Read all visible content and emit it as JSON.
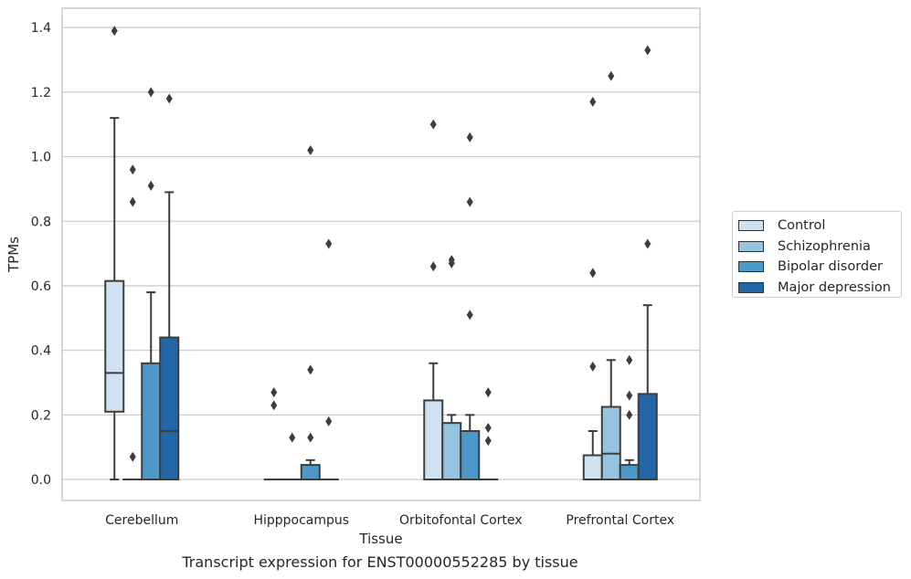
{
  "chart_data": {
    "type": "box",
    "xlabel": "Tissue",
    "ylabel": "TPMs",
    "ylim": [
      -0.065,
      1.46
    ],
    "yticks": [
      0.0,
      0.2,
      0.4,
      0.6,
      0.8,
      1.0,
      1.2,
      1.4
    ],
    "ytick_labels": [
      "0.0",
      "0.2",
      "0.4",
      "0.6",
      "0.8",
      "1.0",
      "1.2",
      "1.4"
    ],
    "grid": "horizontal",
    "legend_position": "right",
    "categories": [
      "Cerebellum",
      "Hipppocampus",
      "Orbitofontal Cortex",
      "Prefrontal Cortex"
    ],
    "series": [
      {
        "name": "Control",
        "color": "#d0e1f2",
        "boxes": [
          {
            "whislo": 0.0,
            "q1": 0.21,
            "median": 0.33,
            "q3": 0.615,
            "whishi": 1.12,
            "fliers": [
              1.39
            ]
          },
          {
            "whislo": 0.0,
            "q1": 0.0,
            "median": 0.0,
            "q3": 0.0,
            "whishi": 0.0,
            "fliers": [
              0.27,
              0.23
            ]
          },
          {
            "whislo": 0.0,
            "q1": 0.0,
            "median": 0.0,
            "q3": 0.245,
            "whishi": 0.36,
            "fliers": [
              1.1,
              0.66
            ]
          },
          {
            "whislo": 0.0,
            "q1": 0.0,
            "median": 0.0,
            "q3": 0.075,
            "whishi": 0.15,
            "fliers": [
              1.17,
              0.64,
              0.35
            ]
          }
        ]
      },
      {
        "name": "Schizophrenia",
        "color": "#94c4df",
        "boxes": [
          {
            "whislo": 0.0,
            "q1": 0.0,
            "median": 0.0,
            "q3": 0.0,
            "whishi": 0.0,
            "fliers": [
              0.96,
              0.86,
              0.07
            ]
          },
          {
            "whislo": 0.0,
            "q1": 0.0,
            "median": 0.0,
            "q3": 0.0,
            "whishi": 0.0,
            "fliers": [
              0.13
            ]
          },
          {
            "whislo": 0.0,
            "q1": 0.0,
            "median": 0.0,
            "q3": 0.175,
            "whishi": 0.2,
            "fliers": [
              0.68,
              0.67
            ]
          },
          {
            "whislo": 0.0,
            "q1": 0.0,
            "median": 0.08,
            "q3": 0.225,
            "whishi": 0.37,
            "fliers": [
              1.25
            ]
          }
        ]
      },
      {
        "name": "Bipolar disorder",
        "color": "#4b98c9",
        "boxes": [
          {
            "whislo": 0.0,
            "q1": 0.0,
            "median": 0.0,
            "q3": 0.36,
            "whishi": 0.58,
            "fliers": [
              1.2,
              0.91
            ]
          },
          {
            "whislo": 0.0,
            "q1": 0.0,
            "median": 0.0,
            "q3": 0.045,
            "whishi": 0.06,
            "fliers": [
              1.02,
              0.34,
              0.13
            ]
          },
          {
            "whislo": 0.0,
            "q1": 0.0,
            "median": 0.0,
            "q3": 0.15,
            "whishi": 0.2,
            "fliers": [
              1.06,
              0.86,
              0.51
            ]
          },
          {
            "whislo": 0.0,
            "q1": 0.0,
            "median": 0.0,
            "q3": 0.045,
            "whishi": 0.06,
            "fliers": [
              0.37,
              0.26,
              0.2
            ]
          }
        ]
      },
      {
        "name": "Major depression",
        "color": "#2366a8",
        "boxes": [
          {
            "whislo": 0.0,
            "q1": 0.0,
            "median": 0.15,
            "q3": 0.44,
            "whishi": 0.89,
            "fliers": [
              1.18
            ]
          },
          {
            "whislo": 0.0,
            "q1": 0.0,
            "median": 0.0,
            "q3": 0.0,
            "whishi": 0.0,
            "fliers": [
              0.73,
              0.18
            ]
          },
          {
            "whislo": 0.0,
            "q1": 0.0,
            "median": 0.0,
            "q3": 0.0,
            "whishi": 0.0,
            "fliers": [
              0.27,
              0.16,
              0.12
            ]
          },
          {
            "whislo": 0.0,
            "q1": 0.0,
            "median": 0.0,
            "q3": 0.265,
            "whishi": 0.54,
            "fliers": [
              1.33,
              0.73
            ]
          }
        ]
      }
    ]
  },
  "caption": "Transcript expression for ENST00000552285 by tissue"
}
